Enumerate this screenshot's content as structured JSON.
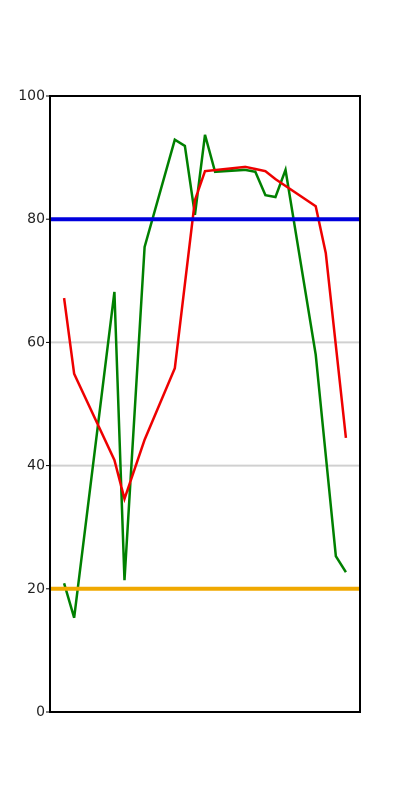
{
  "chart_data": {
    "type": "line",
    "series": [
      {
        "color": "#008000",
        "x": [
          0,
          1,
          5,
          6,
          8,
          11,
          12,
          13,
          14,
          15,
          18,
          19,
          20,
          21,
          22,
          25,
          27,
          28
        ],
        "values": [
          20.9,
          15.3,
          68.2,
          21.4,
          75.5,
          92.9,
          91.9,
          80.7,
          93.7,
          87.7,
          88.0,
          87.7,
          83.9,
          83.6,
          88.0,
          58.0,
          25.3,
          22.7
        ]
      },
      {
        "color": "#ee0000",
        "x": [
          0,
          1,
          5,
          6,
          8,
          11,
          13,
          14,
          18,
          20,
          21,
          25,
          26,
          28
        ],
        "values": [
          67.2,
          54.9,
          40.9,
          34.6,
          44.2,
          55.8,
          83.1,
          87.8,
          88.5,
          87.8,
          86.5,
          82.1,
          74.5,
          44.5
        ]
      }
    ],
    "hlines": [
      {
        "value": 80,
        "color": "#0000dd"
      },
      {
        "value": 20,
        "color": "#f0a800"
      }
    ],
    "xlim": [
      -1.4,
      29.4
    ],
    "ylim": [
      0,
      100
    ],
    "yticks": [
      0,
      20,
      40,
      60,
      80,
      100
    ],
    "grid": true
  }
}
